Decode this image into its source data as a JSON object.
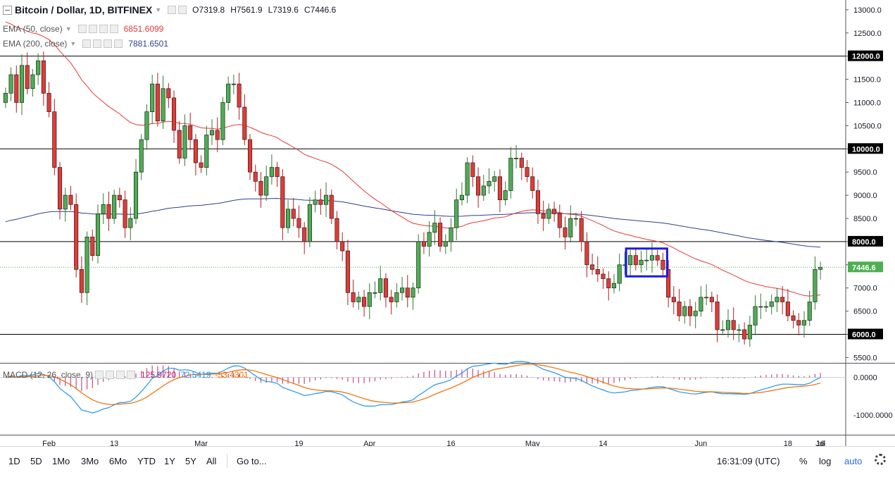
{
  "header": {
    "title": "Bitcoin / Dollar, 1D, BITFINEX",
    "ohlc": [
      {
        "k": "O",
        "v": "7319.8"
      },
      {
        "k": "H",
        "v": "7561.9"
      },
      {
        "k": "L",
        "v": "7319.6"
      },
      {
        "k": "C",
        "v": "7446.6"
      }
    ]
  },
  "indicators": [
    {
      "label": "EMA (50, close)",
      "value": "6851.6099",
      "color": "#e53935"
    },
    {
      "label": "EMA (200, close)",
      "value": "7881.6501",
      "color": "#2f3f8f"
    }
  ],
  "macd": {
    "label": "MACD (12, 26, close, 9)",
    "hist": "125.9720",
    "macd": "72.5419",
    "signal": "-53.4301",
    "hist_color": "#b0246f",
    "macd_color": "#2196f3",
    "signal_color": "#ef6c00"
  },
  "price_axis": {
    "ticks": [
      "13000.0",
      "12500.0",
      "12000.0",
      "11500.0",
      "11000.0",
      "10500.0",
      "10000.0",
      "9500.0",
      "9000.0",
      "8500.0",
      "8000.0",
      "7500.0",
      "7000.0",
      "6500.0",
      "6000.0",
      "5500.0"
    ],
    "tick_values": [
      13000,
      12500,
      12000,
      11500,
      11000,
      10500,
      10000,
      9500,
      9000,
      8500,
      8000,
      7500,
      7000,
      6500,
      6000,
      5500
    ],
    "range": [
      5400,
      13150
    ],
    "last_price": "7446.6",
    "levels": [
      {
        "value": 12000,
        "label": "12000.0"
      },
      {
        "value": 10000,
        "label": "10000.0"
      },
      {
        "value": 8000,
        "label": "8000.0"
      },
      {
        "value": 6000,
        "label": "6000.0"
      }
    ]
  },
  "macd_axis": {
    "ticks": [
      "0.0000",
      "-1000.0000"
    ],
    "tick_values": [
      0,
      -1000
    ],
    "range": [
      -1500,
      350
    ]
  },
  "time_axis": {
    "labels": [
      {
        "text": "Feb",
        "day": 30
      },
      {
        "text": "13",
        "day": 42
      },
      {
        "text": "Mar",
        "day": 58
      },
      {
        "text": "19",
        "day": 76
      },
      {
        "text": "Apr",
        "day": 89
      },
      {
        "text": "16",
        "day": 104
      },
      {
        "text": "May",
        "day": 119
      },
      {
        "text": "14",
        "day": 132
      },
      {
        "text": "Jun",
        "day": 150
      },
      {
        "text": "18",
        "day": 166
      },
      {
        "text": "Jul",
        "day": 180
      },
      {
        "text": "16",
        "day": 195
      }
    ],
    "start_day": 22,
    "end_day": 196
  },
  "toolbar": {
    "timeframes": [
      "1D",
      "5D",
      "1Mo",
      "3Mo",
      "6Mo",
      "YTD",
      "1Y",
      "5Y",
      "All"
    ],
    "goto": "Go to...",
    "clock": "16:31:09 (UTC)",
    "percent": "%",
    "log": "log",
    "auto": "auto"
  },
  "colors": {
    "up": "#4caf50",
    "down": "#e53935",
    "candle_border": "#222222",
    "highlight": "#1a1ae6",
    "grid": "#000000"
  },
  "chart_data": {
    "type": "candlestick",
    "symbol": "Bitcoin / Dollar, 1D, BITFINEX",
    "closes": [
      11200,
      11600,
      11000,
      11800,
      11300,
      11600,
      11900,
      11200,
      10800,
      9600,
      8700,
      9000,
      8800,
      7400,
      6900,
      8100,
      7700,
      8600,
      8800,
      8500,
      9000,
      8900,
      8300,
      8500,
      9500,
      10200,
      10800,
      11400,
      10600,
      11300,
      11100,
      10400,
      9800,
      10500,
      10200,
      9700,
      9600,
      10300,
      10400,
      10200,
      11000,
      11400,
      11400,
      10900,
      10200,
      9500,
      9300,
      9000,
      9400,
      9600,
      9400,
      8300,
      8700,
      8500,
      8300,
      8000,
      8800,
      8900,
      8800,
      9000,
      8500,
      8000,
      7800,
      6900,
      6700,
      6800,
      6600,
      6900,
      6900,
      7200,
      6800,
      6700,
      6900,
      7000,
      6800,
      7000,
      8000,
      7900,
      8200,
      8400,
      7900,
      8000,
      8300,
      8900,
      9000,
      9700,
      9400,
      9000,
      9200,
      9300,
      9400,
      8900,
      9100,
      9800,
      9800,
      9600,
      9400,
      9100,
      8600,
      8500,
      8700,
      8600,
      8300,
      8100,
      8500,
      8500,
      8000,
      7500,
      7400,
      7300,
      7200,
      7000,
      7100,
      7500,
      7500,
      7700,
      7500,
      7600,
      7600,
      7700,
      7600,
      7400,
      6800,
      6700,
      6400,
      6600,
      6400,
      6500,
      6800,
      6800,
      6700,
      6100,
      6100,
      6300,
      6100,
      6100,
      5900,
      6200,
      6600,
      6600,
      6600,
      6700,
      6800,
      6700,
      6400,
      6300,
      6200,
      6300,
      6700,
      7400,
      7447
    ],
    "ema50_last": 6851.6099,
    "ema200_last": 7881.6501,
    "macd_last": 72.5419,
    "signal_last": -53.4301,
    "hist_last": 125.972,
    "horizontal_levels": [
      12000,
      10000,
      8000,
      6000
    ],
    "highlight_box": {
      "start_index": 115,
      "end_index": 121,
      "low": 7400,
      "high": 7700
    }
  }
}
